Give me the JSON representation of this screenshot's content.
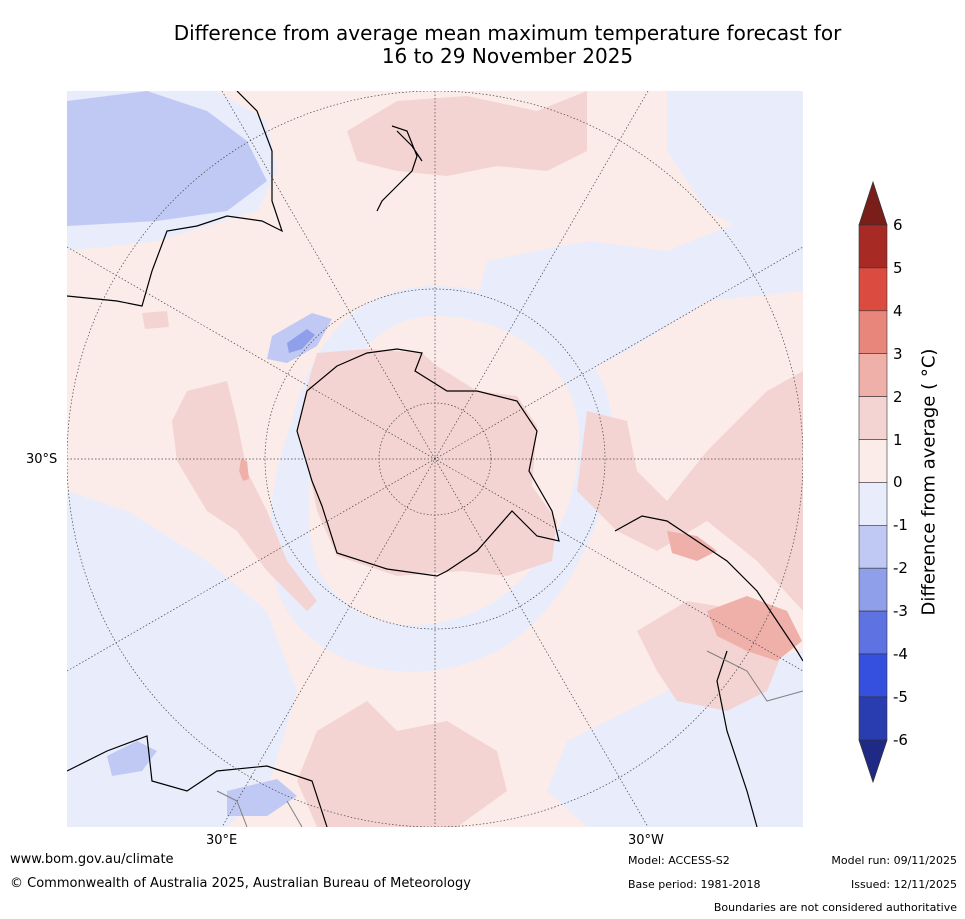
{
  "title_line1": "Difference from average mean maximum temperature forecast for",
  "title_line2": "16 to 29 November 2025",
  "axis": {
    "lat_label": "30°S",
    "lon_label_left": "30°E",
    "lon_label_right": "30°W"
  },
  "colorbar": {
    "title": "Difference from average ( °C)",
    "ticks": [
      "6",
      "5",
      "4",
      "3",
      "2",
      "1",
      "0",
      "-1",
      "-2",
      "-3",
      "-4",
      "-5",
      "-6"
    ],
    "colors": {
      "over": "#7a1e1a",
      "5_6": "#a82a24",
      "4_5": "#dc4b3f",
      "3_4": "#e8867c",
      "2_3": "#efb0aa",
      "1_2": "#f4d4d2",
      "0_1": "#fbecea",
      "m1_0": "#e8ecfb",
      "m2_m1": "#c0c9f3",
      "m3_m2": "#8f9fea",
      "m4_m3": "#5e72e2",
      "m5_m4": "#3550df",
      "m6_m5": "#2a3db0",
      "under": "#1e2a85"
    }
  },
  "footer": {
    "website": "www.bom.gov.au/climate",
    "copyright": "© Commonwealth of Australia 2025, Australian Bureau of Meteorology",
    "model": "Model: ACCESS-S2",
    "base_period": "Base period: 1981-2018",
    "model_run": "Model run: 09/11/2025",
    "issued": "Issued: 12/11/2025",
    "disclaimer": "Boundaries are not considered authoritative"
  }
}
